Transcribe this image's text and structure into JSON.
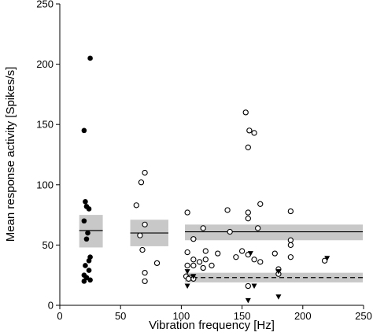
{
  "chart_data": {
    "type": "scatter",
    "xlabel": "Vibration frequency [Hz]",
    "ylabel": "Mean response activity [Spikes/s]",
    "xlim": [
      0,
      250
    ],
    "ylim": [
      0,
      250
    ],
    "x_ticks": [
      0,
      50,
      100,
      150,
      200,
      250
    ],
    "y_ticks": [
      0,
      50,
      100,
      150,
      200,
      250
    ],
    "x_tick_labels": [
      "0",
      "50",
      "100",
      "150",
      "200",
      "250"
    ],
    "y_tick_labels": [
      "0",
      "50",
      "100",
      "150",
      "200",
      "250"
    ],
    "grid": false,
    "colors": {
      "band": "#c8c8c8",
      "marker": "#000000",
      "open_fill": "#ffffff"
    },
    "series": [
      {
        "marker": "filled-circle",
        "points": [
          [
            25,
            205
          ],
          [
            20,
            145
          ],
          [
            21,
            86
          ],
          [
            22,
            82
          ],
          [
            24,
            80
          ],
          [
            20,
            70
          ],
          [
            23,
            60
          ],
          [
            22,
            55
          ],
          [
            25,
            40
          ],
          [
            24,
            37
          ],
          [
            21,
            33
          ],
          [
            24,
            29
          ],
          [
            20,
            25
          ],
          [
            22,
            23
          ],
          [
            20,
            20
          ],
          [
            25,
            21
          ]
        ]
      },
      {
        "marker": "open-circle",
        "points": [
          [
            70,
            110
          ],
          [
            67,
            102
          ],
          [
            63,
            83
          ],
          [
            70,
            67
          ],
          [
            66,
            58
          ],
          [
            68,
            46
          ],
          [
            70,
            27
          ],
          [
            70,
            20
          ],
          [
            80,
            35
          ],
          [
            153,
            160
          ],
          [
            156,
            145
          ],
          [
            160,
            143
          ],
          [
            155,
            131
          ],
          [
            105,
            77
          ],
          [
            110,
            55
          ],
          [
            118,
            64
          ],
          [
            138,
            79
          ],
          [
            155,
            77
          ],
          [
            155,
            72
          ],
          [
            165,
            84
          ],
          [
            190,
            78
          ],
          [
            140,
            61
          ],
          [
            163,
            64
          ],
          [
            190,
            54
          ],
          [
            190,
            50
          ],
          [
            105,
            44
          ],
          [
            120,
            45
          ],
          [
            150,
            45
          ],
          [
            155,
            42
          ],
          [
            130,
            43
          ],
          [
            145,
            40
          ],
          [
            160,
            38
          ],
          [
            177,
            43
          ],
          [
            190,
            40
          ],
          [
            110,
            38
          ],
          [
            115,
            36
          ],
          [
            120,
            38
          ],
          [
            110,
            33
          ],
          [
            125,
            33
          ],
          [
            118,
            31
          ],
          [
            105,
            33
          ],
          [
            180,
            30
          ],
          [
            180,
            26
          ],
          [
            165,
            36
          ],
          [
            104,
            24
          ],
          [
            107,
            23
          ],
          [
            106,
            22
          ],
          [
            110,
            22
          ],
          [
            155,
            16
          ],
          [
            218,
            37
          ]
        ]
      },
      {
        "marker": "filled-triangle-down",
        "points": [
          [
            105,
            28
          ],
          [
            110,
            24
          ],
          [
            105,
            16
          ],
          [
            157,
            43
          ],
          [
            160,
            16
          ],
          [
            180,
            28
          ],
          [
            180,
            7
          ],
          [
            220,
            39
          ],
          [
            155,
            4
          ]
        ]
      }
    ],
    "bands": [
      {
        "x_range": [
          16,
          36
        ],
        "y_range": [
          48,
          75
        ],
        "median": 62,
        "line": "solid"
      },
      {
        "x_range": [
          58,
          90
        ],
        "y_range": [
          49,
          71
        ],
        "median": 60,
        "line": "solid"
      },
      {
        "x_range": [
          103,
          250
        ],
        "y_range": [
          54,
          67
        ],
        "median": 61,
        "line": "solid"
      },
      {
        "x_range": [
          103,
          250
        ],
        "y_range": [
          19,
          27
        ],
        "median": 23,
        "line": "dashed"
      }
    ]
  }
}
